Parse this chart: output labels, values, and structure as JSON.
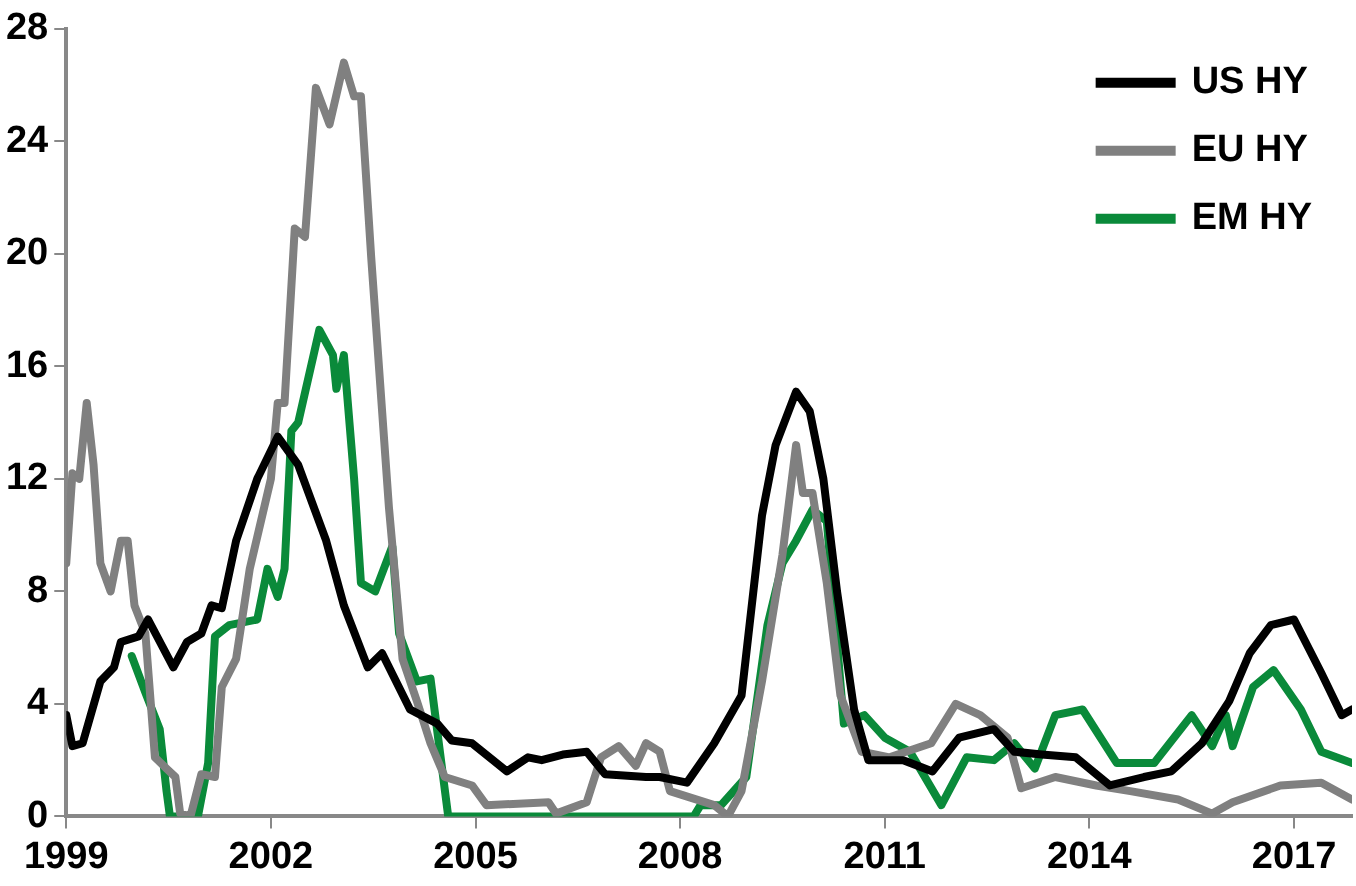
{
  "chart_data": {
    "type": "line",
    "xlim": [
      1999,
      2017.85
    ],
    "xticks": [
      1999,
      2002,
      2005,
      2008,
      2011,
      2014,
      2017
    ],
    "ylim": [
      0,
      28
    ],
    "yticks": [
      0,
      4,
      8,
      12,
      16,
      20,
      24,
      28
    ],
    "grid": false,
    "legend": "top right",
    "marker": "none",
    "line_style": "solid",
    "series": [
      {
        "name": "US HY",
        "color": "#000000",
        "x": [
          1999.0,
          1999.09,
          1999.24,
          1999.5,
          1999.7,
          1999.8,
          2000.06,
          2000.2,
          2000.57,
          2000.77,
          2000.98,
          2001.13,
          2001.28,
          2001.49,
          2001.8,
          2002.1,
          2002.4,
          2002.81,
          2003.07,
          2003.42,
          2003.63,
          2004.04,
          2004.44,
          2004.65,
          2004.95,
          2005.46,
          2005.77,
          2005.97,
          2006.28,
          2006.63,
          2006.9,
          2007.5,
          2007.7,
          2008.1,
          2008.5,
          2008.9,
          2009.2,
          2009.4,
          2009.7,
          2009.9,
          2010.1,
          2010.3,
          2010.55,
          2010.76,
          2011.27,
          2011.7,
          2012.09,
          2012.6,
          2012.9,
          2013.3,
          2013.8,
          2014.3,
          2014.8,
          2015.2,
          2015.65,
          2016.05,
          2016.35,
          2016.66,
          2017.0,
          2017.4,
          2017.7,
          2017.85
        ],
        "values": [
          3.6,
          2.5,
          2.6,
          4.8,
          5.3,
          6.2,
          6.4,
          7.0,
          5.3,
          6.2,
          6.5,
          7.5,
          7.4,
          9.8,
          12.0,
          13.5,
          12.5,
          9.8,
          7.5,
          5.3,
          5.8,
          3.8,
          3.3,
          2.7,
          2.6,
          1.6,
          2.1,
          2.0,
          2.2,
          2.3,
          1.5,
          1.4,
          1.4,
          1.2,
          2.6,
          4.3,
          10.7,
          13.2,
          15.1,
          14.4,
          12.0,
          8.0,
          3.8,
          2.0,
          2.0,
          1.6,
          2.8,
          3.1,
          2.3,
          2.2,
          2.1,
          1.1,
          1.4,
          1.6,
          2.6,
          4.1,
          5.8,
          6.8,
          7.0,
          5.1,
          3.6,
          3.8
        ]
      },
      {
        "name": "EU HY",
        "color": "#808080",
        "x": [
          1999.0,
          1999.09,
          1999.19,
          1999.3,
          1999.4,
          1999.5,
          1999.65,
          1999.8,
          1999.9,
          2000.0,
          2000.16,
          2000.3,
          2000.47,
          2000.6,
          2000.67,
          2000.82,
          2000.98,
          2001.18,
          2001.28,
          2001.49,
          2001.69,
          2002.0,
          2002.1,
          2002.2,
          2002.35,
          2002.5,
          2002.66,
          2002.86,
          2003.07,
          2003.22,
          2003.32,
          2003.47,
          2003.73,
          2003.93,
          2004.14,
          2004.34,
          2004.55,
          2004.95,
          2005.16,
          2006.07,
          2006.18,
          2006.63,
          2006.84,
          2007.1,
          2007.35,
          2007.5,
          2007.7,
          2007.85,
          2008.5,
          2008.7,
          2008.9,
          2009.2,
          2009.5,
          2009.7,
          2009.8,
          2009.94,
          2010.15,
          2010.35,
          2010.66,
          2011.07,
          2011.68,
          2012.04,
          2012.4,
          2012.8,
          2013.0,
          2013.5,
          2014.1,
          2014.6,
          2015.3,
          2015.8,
          2016.1,
          2016.8,
          2017.4,
          2017.85
        ],
        "values": [
          9.0,
          12.2,
          12.0,
          14.7,
          12.5,
          9.0,
          8.0,
          9.8,
          9.8,
          7.5,
          6.5,
          2.1,
          1.7,
          1.4,
          0.1,
          0,
          1.5,
          1.4,
          4.6,
          5.6,
          8.8,
          12.0,
          14.7,
          14.7,
          20.9,
          20.6,
          25.9,
          24.6,
          26.8,
          25.6,
          25.6,
          19.9,
          11.0,
          5.6,
          4.1,
          2.6,
          1.4,
          1.1,
          0.4,
          0.5,
          0.1,
          0.5,
          2.1,
          2.5,
          1.8,
          2.6,
          2.3,
          0.9,
          0.4,
          0,
          0.9,
          4.8,
          9.3,
          13.2,
          11.5,
          11.5,
          8.3,
          4.3,
          2.3,
          2.1,
          2.6,
          4.0,
          3.6,
          2.8,
          1.0,
          1.4,
          1.1,
          0.9,
          0.6,
          0.1,
          0.5,
          1.1,
          1.2,
          0.6
        ]
      },
      {
        "name": "EM HY",
        "color": "#0a8a3a",
        "x": [
          1999.96,
          2000.16,
          2000.37,
          2000.47,
          2000.52,
          2000.93,
          2001.08,
          2001.18,
          2001.39,
          2001.8,
          2001.95,
          2002.1,
          2002.2,
          2002.3,
          2002.4,
          2002.71,
          2002.91,
          2002.96,
          2003.07,
          2003.22,
          2003.32,
          2003.53,
          2003.78,
          2003.88,
          2004.14,
          2004.34,
          2004.6,
          2008.2,
          2008.3,
          2008.6,
          2008.97,
          2009.28,
          2009.5,
          2009.7,
          2009.94,
          2010.15,
          2010.4,
          2010.7,
          2011.0,
          2011.37,
          2011.83,
          2012.2,
          2012.6,
          2012.9,
          2013.2,
          2013.5,
          2013.9,
          2014.4,
          2014.95,
          2015.5,
          2015.8,
          2016.0,
          2016.1,
          2016.4,
          2016.7,
          2017.1,
          2017.4,
          2017.85
        ],
        "values": [
          5.7,
          4.4,
          3.1,
          0.9,
          0,
          0,
          1.9,
          6.4,
          6.8,
          7.0,
          8.8,
          7.8,
          8.8,
          13.7,
          14.0,
          17.3,
          16.4,
          15.2,
          16.4,
          12.0,
          8.3,
          8.0,
          9.6,
          6.5,
          4.8,
          4.9,
          0,
          0,
          0.4,
          0.4,
          1.4,
          6.8,
          9.0,
          9.8,
          10.9,
          10.5,
          3.3,
          3.6,
          2.8,
          2.3,
          0.4,
          2.1,
          2.0,
          2.6,
          1.7,
          3.6,
          3.8,
          1.9,
          1.9,
          3.6,
          2.5,
          3.6,
          2.5,
          4.6,
          5.2,
          3.8,
          2.3,
          1.9
        ]
      }
    ]
  }
}
